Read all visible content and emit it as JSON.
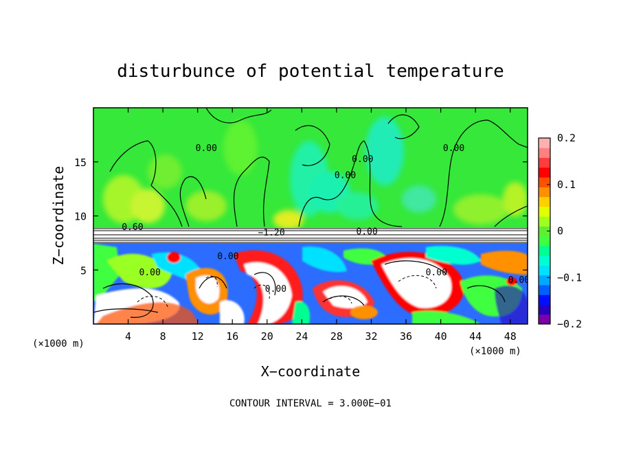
{
  "chart_data": {
    "type": "heatmap",
    "title": "disturbunce of potential temperature",
    "xlabel": "X−coordinate",
    "ylabel": "Z−coordinate",
    "x_unit": "(×1000 m)",
    "x_unit_right": "(×1000 m)",
    "xlim": [
      0,
      50
    ],
    "ylim": [
      0,
      20
    ],
    "xticks": [
      4,
      8,
      12,
      16,
      20,
      24,
      28,
      32,
      36,
      40,
      44,
      48
    ],
    "yticks": [
      5,
      10,
      15
    ],
    "colorbar": {
      "range": [
        -0.2,
        0.2
      ],
      "ticks": [
        {
          "value": 0.2,
          "label": "0.2"
        },
        {
          "value": 0.1,
          "label": "0.1"
        },
        {
          "value": 0,
          "label": "0"
        },
        {
          "value": -0.1,
          "label": "−0.1"
        },
        {
          "value": -0.2,
          "label": "−0.2"
        }
      ],
      "colors": [
        "#7a00a8",
        "#2a00c0",
        "#0010ff",
        "#0060ff",
        "#00a8ff",
        "#00e0ff",
        "#00ffd0",
        "#00ff90",
        "#40ff40",
        "#60ee30",
        "#a0ff20",
        "#e0ff00",
        "#ffd000",
        "#ff9000",
        "#ff5000",
        "#ff0000",
        "#ff3c3c",
        "#ff8080",
        "#ffb0b0"
      ]
    },
    "contour_labels": [
      {
        "text": "0.00",
        "x": 13,
        "z": 16
      },
      {
        "text": "0.00",
        "x": 31,
        "z": 15
      },
      {
        "text": "0.00",
        "x": 29,
        "z": 13.5
      },
      {
        "text": "0.00",
        "x": 41.5,
        "z": 16
      },
      {
        "text": "0.60",
        "x": 4.5,
        "z": 8.7
      },
      {
        "text": "−1.20",
        "x": 20.5,
        "z": 8.2
      },
      {
        "text": "0.00",
        "x": 31.5,
        "z": 8.3
      },
      {
        "text": "0.00",
        "x": 6.5,
        "z": 4.5
      },
      {
        "text": "0.00",
        "x": 15.5,
        "z": 6
      },
      {
        "text": "0.00",
        "x": 21,
        "z": 3
      },
      {
        "text": "0.00",
        "x": 39.5,
        "z": 4.5
      },
      {
        "text": "0.00",
        "x": 49,
        "z": 3.8
      }
    ],
    "grid": false,
    "legend": "colorbar-right"
  },
  "footer": {
    "contour_interval": "CONTOUR INTERVAL = 3.000E−01"
  }
}
